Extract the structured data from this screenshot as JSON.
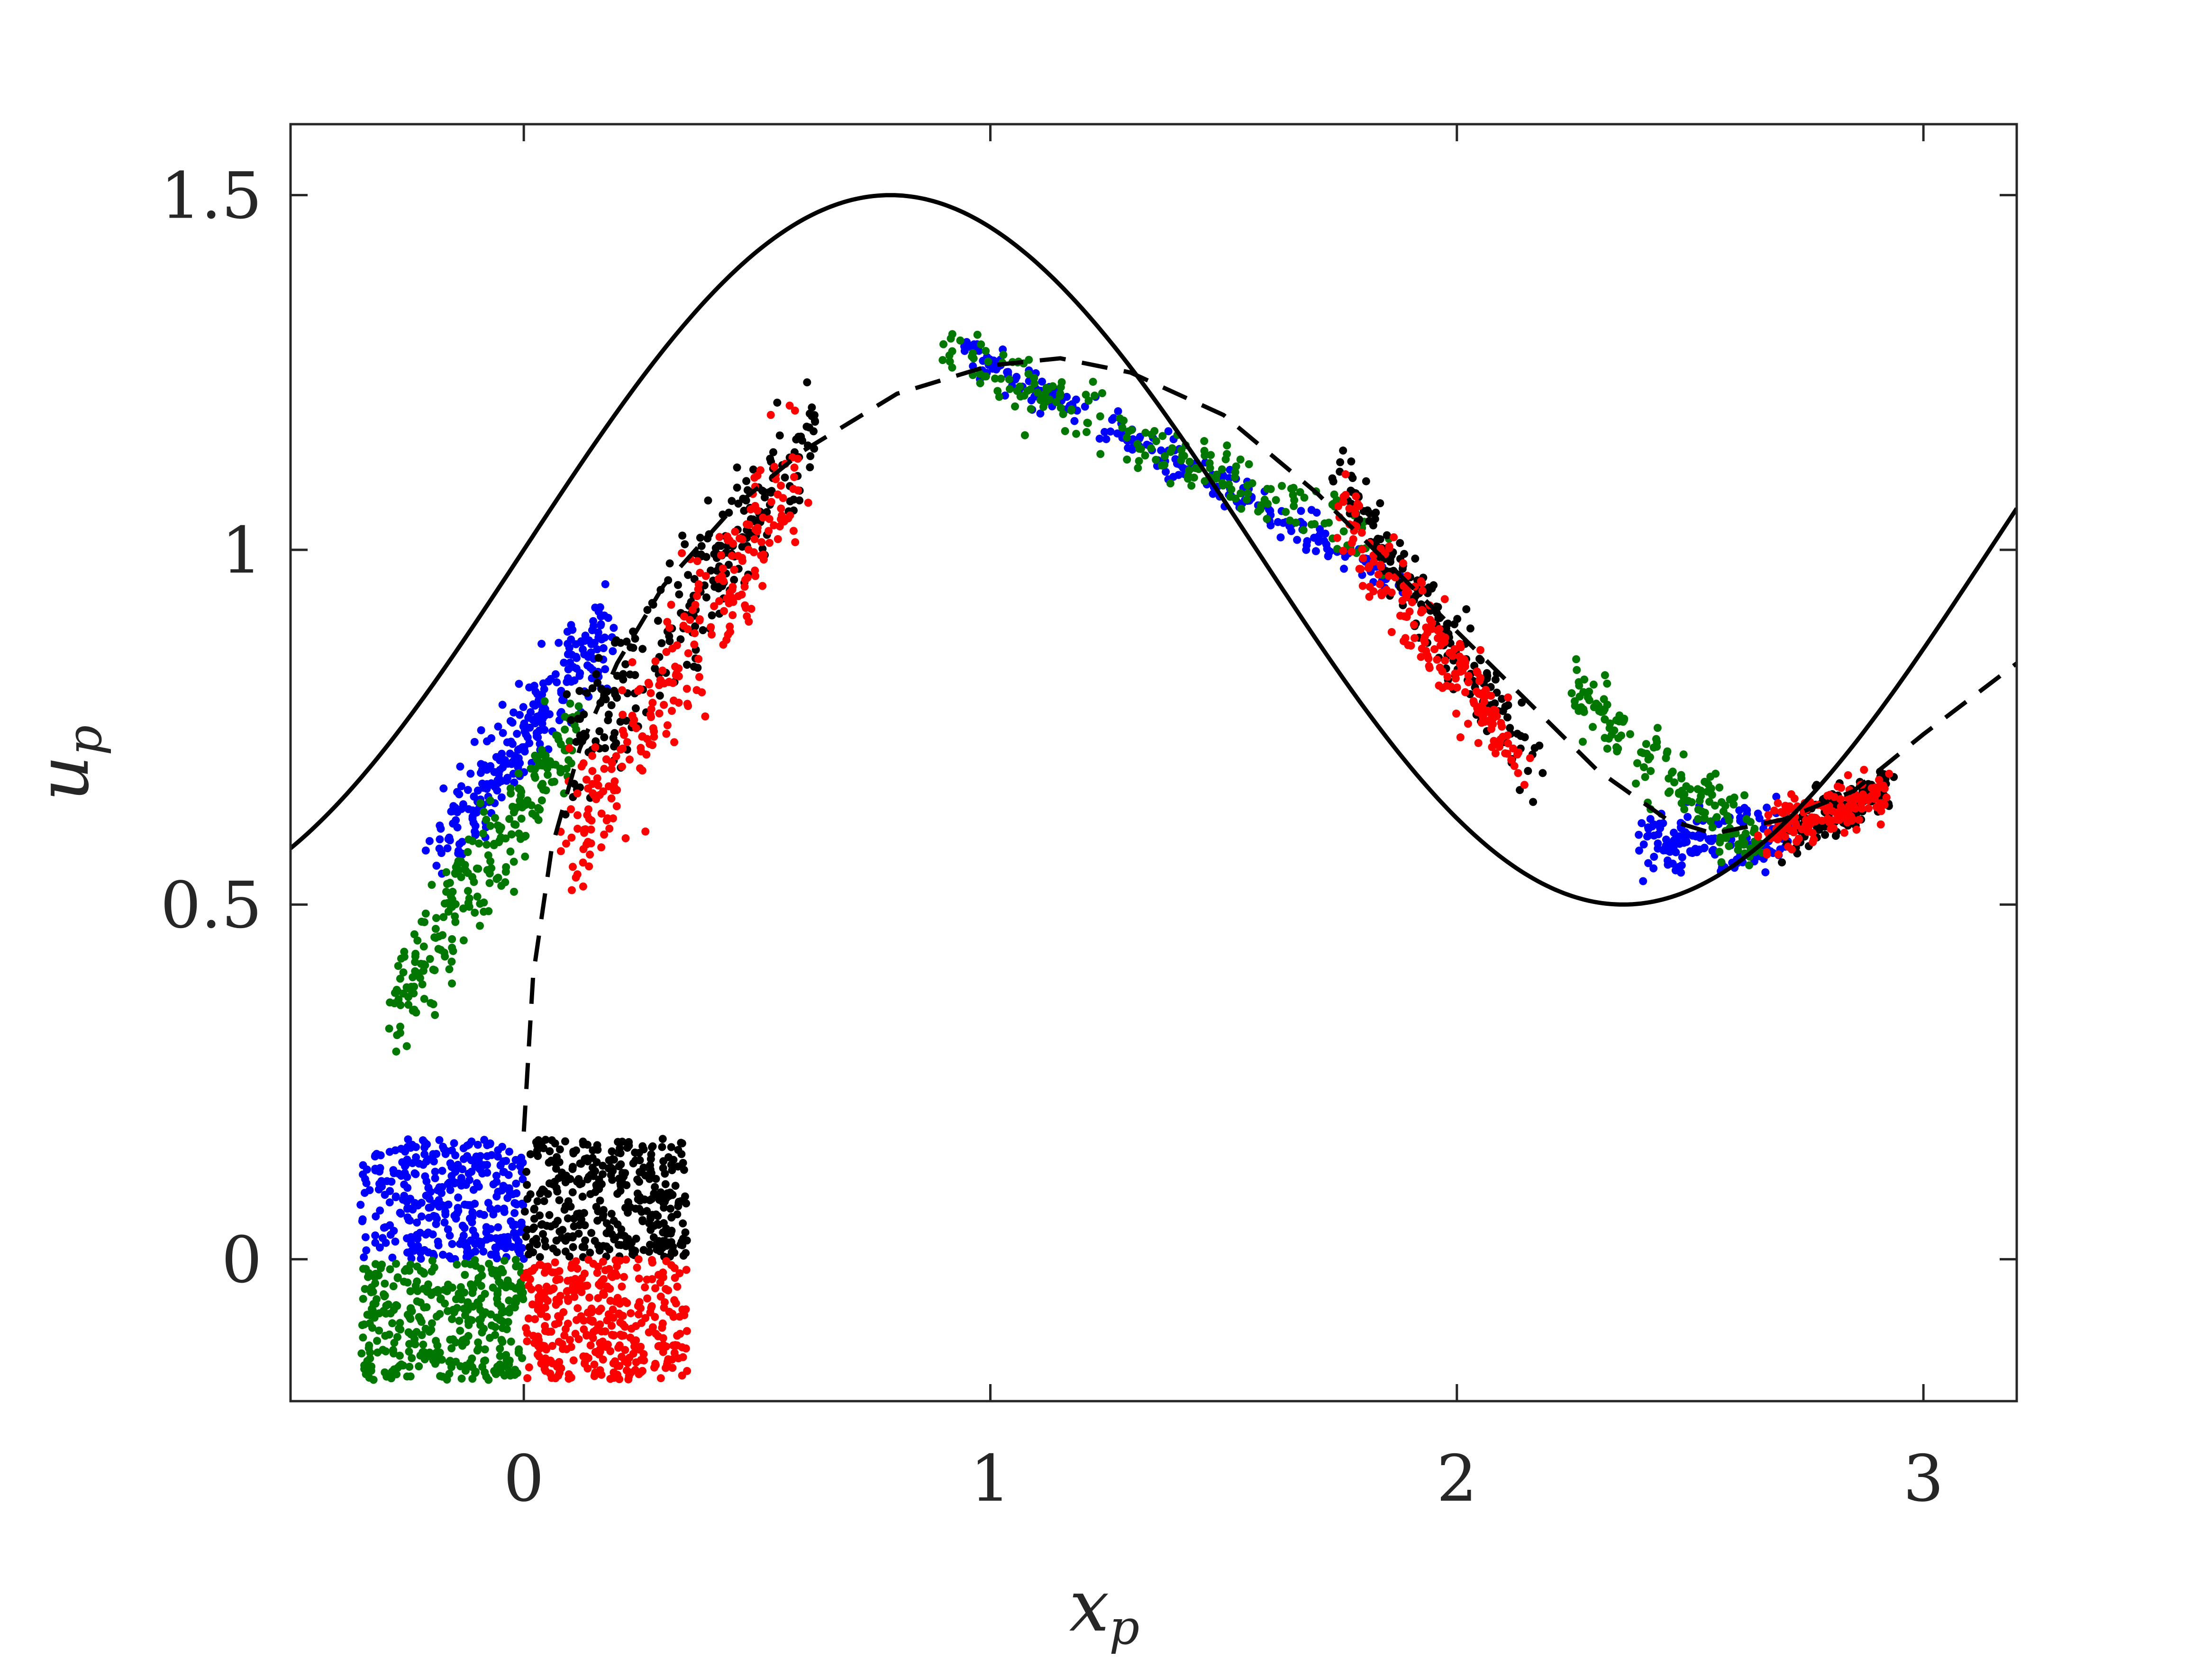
{
  "chart_data": {
    "type": "scatter",
    "title": "",
    "xlabel": "x",
    "xlabel_sub": "p",
    "ylabel": "u",
    "ylabel_sub": "p",
    "xlim": [
      -0.5,
      3.2
    ],
    "ylim": [
      -0.2,
      1.6
    ],
    "xticks": [
      0,
      1,
      2,
      3
    ],
    "xtick_labels": [
      "0",
      "1",
      "2",
      "3"
    ],
    "yticks": [
      0,
      0.5,
      1,
      1.5
    ],
    "ytick_labels": [
      "0",
      "0.5",
      "1",
      "1.5"
    ],
    "grid": false,
    "box": true,
    "legend": "none",
    "lines": [
      {
        "style": "solid",
        "color": "#000000",
        "function": "1 + 0.5*sin(2*x)",
        "x_range": [
          -0.5,
          3.2
        ],
        "sample_points": [
          [
            -0.5,
            0.58
          ],
          [
            0,
            1.0
          ],
          [
            0.785,
            1.5
          ],
          [
            1.2,
            1.34
          ],
          [
            1.571,
            1.0
          ],
          [
            2.0,
            0.62
          ],
          [
            2.356,
            0.5
          ],
          [
            2.7,
            0.62
          ],
          [
            3.2,
            1.06
          ]
        ]
      },
      {
        "style": "dashed",
        "color": "#000000",
        "points": [
          [
            0.0,
            0.18
          ],
          [
            0.02,
            0.4
          ],
          [
            0.06,
            0.58
          ],
          [
            0.12,
            0.72
          ],
          [
            0.2,
            0.84
          ],
          [
            0.3,
            0.95
          ],
          [
            0.45,
            1.06
          ],
          [
            0.6,
            1.14
          ],
          [
            0.8,
            1.22
          ],
          [
            1.0,
            1.26
          ],
          [
            1.15,
            1.27
          ],
          [
            1.3,
            1.25
          ],
          [
            1.5,
            1.19
          ],
          [
            1.7,
            1.08
          ],
          [
            1.9,
            0.95
          ],
          [
            2.1,
            0.82
          ],
          [
            2.3,
            0.69
          ],
          [
            2.45,
            0.62
          ],
          [
            2.55,
            0.6
          ],
          [
            2.7,
            0.62
          ],
          [
            2.85,
            0.66
          ],
          [
            3.0,
            0.74
          ],
          [
            3.2,
            0.84
          ]
        ]
      }
    ],
    "scatter_groups": [
      {
        "color": "#0000ff",
        "initial_region": {
          "x": [
            -0.35,
            0.0
          ],
          "y": [
            0.0,
            0.17
          ]
        },
        "count": 350,
        "evolved_clusters": [
          {
            "x0": -0.18,
            "y0": 0.58,
            "x1": 0.18,
            "y1": 0.9,
            "spread": 0.05,
            "count": 260
          },
          {
            "x0": 0.95,
            "y0": 1.28,
            "x1": 1.9,
            "y1": 0.95,
            "spread": 0.02,
            "count": 220
          },
          {
            "x0": 2.4,
            "y0": 0.58,
            "x1": 2.72,
            "y1": 0.6,
            "spread": 0.03,
            "count": 160
          }
        ]
      },
      {
        "color": "#007700",
        "initial_region": {
          "x": [
            -0.35,
            0.0
          ],
          "y": [
            -0.17,
            0.0
          ]
        },
        "count": 350,
        "evolved_clusters": [
          {
            "x0": -0.28,
            "y0": 0.35,
            "x1": 0.12,
            "y1": 0.76,
            "spread": 0.05,
            "count": 240
          },
          {
            "x0": 0.9,
            "y0": 1.28,
            "x1": 1.85,
            "y1": 1.0,
            "spread": 0.03,
            "count": 200
          },
          {
            "x0": 2.25,
            "y0": 0.8,
            "x1": 2.65,
            "y1": 0.58,
            "spread": 0.035,
            "count": 160
          }
        ]
      },
      {
        "color": "#000000",
        "initial_region": {
          "x": [
            0.0,
            0.35
          ],
          "y": [
            0.0,
            0.17
          ]
        },
        "count": 350,
        "evolved_clusters": [
          {
            "x0": 0.1,
            "y0": 0.7,
            "x1": 0.62,
            "y1": 1.17,
            "spread": 0.06,
            "count": 250
          },
          {
            "x0": 1.75,
            "y0": 1.1,
            "x1": 2.18,
            "y1": 0.68,
            "spread": 0.035,
            "count": 180
          },
          {
            "x0": 2.7,
            "y0": 0.6,
            "x1": 2.93,
            "y1": 0.67,
            "spread": 0.025,
            "count": 140
          }
        ]
      },
      {
        "color": "#ff0000",
        "initial_region": {
          "x": [
            0.0,
            0.35
          ],
          "y": [
            -0.17,
            0.0
          ]
        },
        "count": 350,
        "evolved_clusters": [
          {
            "x0": 0.1,
            "y0": 0.58,
            "x1": 0.58,
            "y1": 1.1,
            "spread": 0.07,
            "count": 260
          },
          {
            "x0": 1.75,
            "y0": 1.05,
            "x1": 2.15,
            "y1": 0.7,
            "spread": 0.04,
            "count": 200
          },
          {
            "x0": 2.65,
            "y0": 0.6,
            "x1": 2.92,
            "y1": 0.66,
            "spread": 0.025,
            "count": 150
          }
        ]
      }
    ]
  }
}
